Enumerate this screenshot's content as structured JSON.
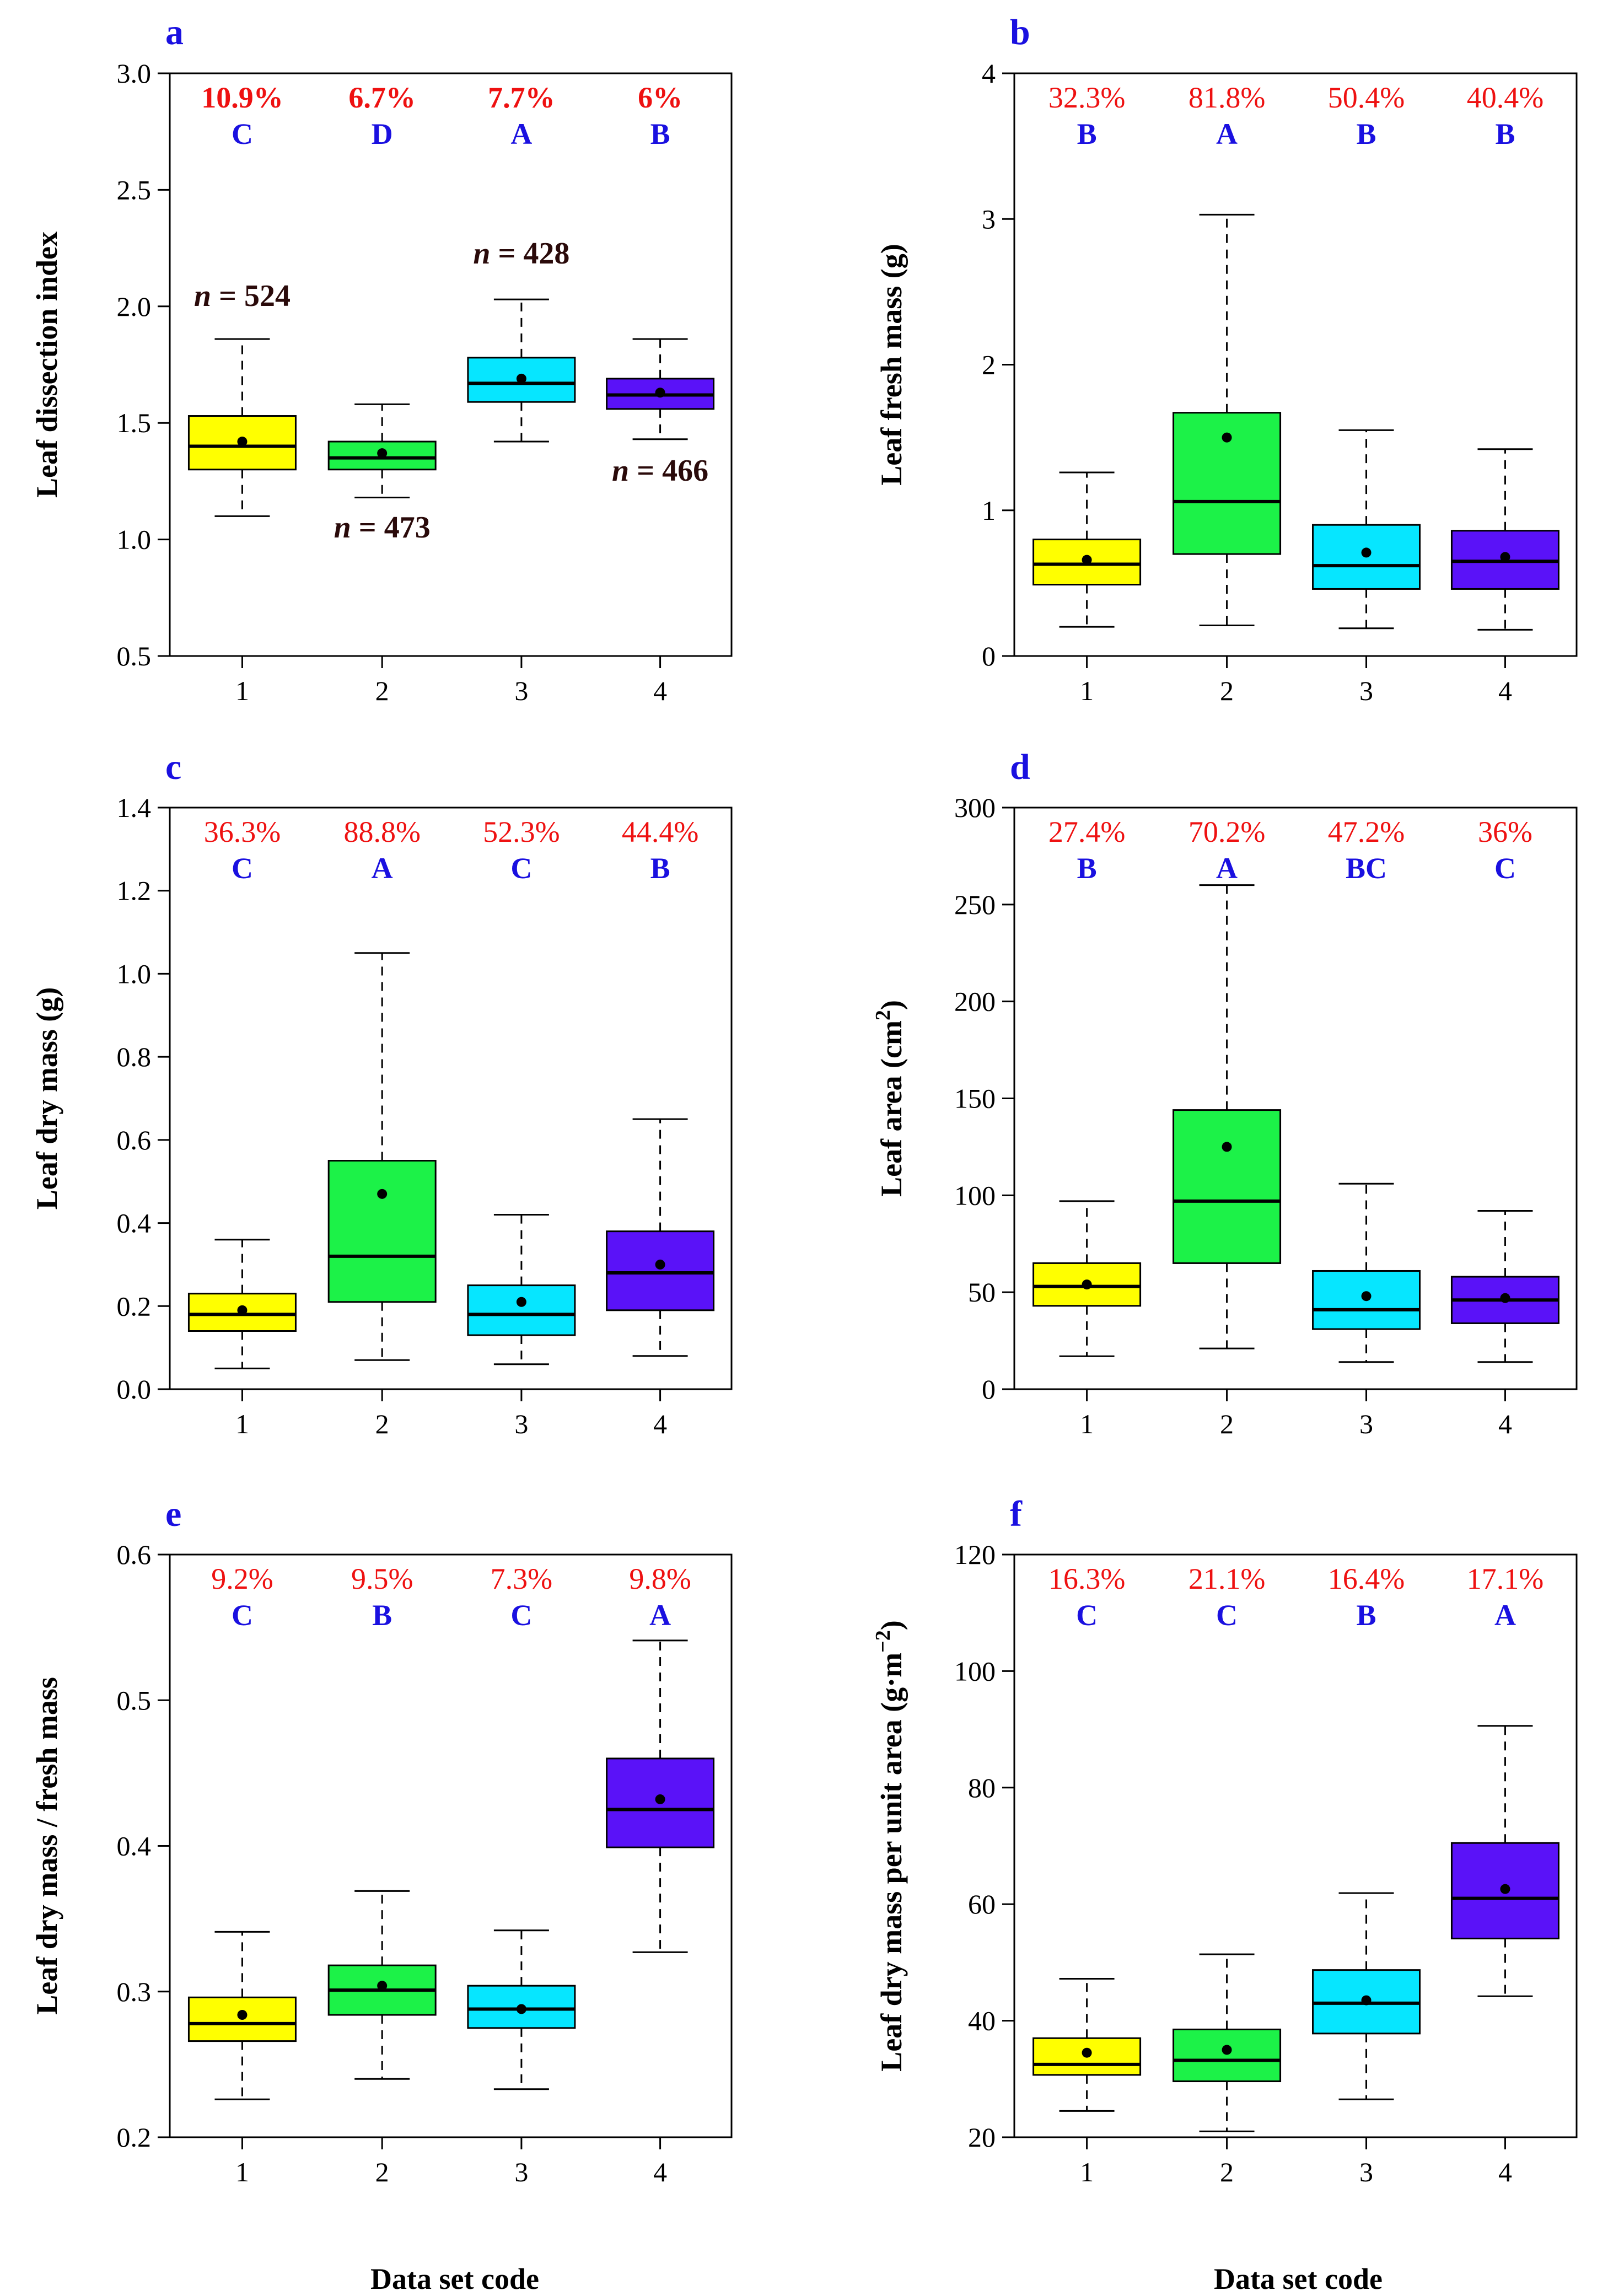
{
  "figure": {
    "xlabel": "Data set code"
  },
  "colors": {
    "box_fills": [
      "#ffff00",
      "#1cf248",
      "#06e6ff",
      "#5a12f8"
    ],
    "percent_text": "#ee1111",
    "group_text": "#1a10e0",
    "panel_letter": "#1a10e0",
    "n_text": "#2a0a0a",
    "axis": "#000000"
  },
  "chart_data": [
    {
      "panel": "a",
      "type": "box",
      "ylabel": "Leaf dissection index",
      "ylim": [
        0.5,
        3.0
      ],
      "yticks": [
        "0.5",
        "1.0",
        "1.5",
        "2.0",
        "2.5",
        "3.0"
      ],
      "categories": [
        "1",
        "2",
        "3",
        "4"
      ],
      "cv_labels": [
        "10.9%",
        "6.7%",
        "7.7%",
        "6%"
      ],
      "cv_bold": true,
      "group_letters": [
        "C",
        "D",
        "A",
        "B"
      ],
      "boxes": [
        {
          "whisker_low": 1.1,
          "q1": 1.3,
          "median": 1.4,
          "q3": 1.53,
          "whisker_high": 1.86,
          "mean": 1.42
        },
        {
          "whisker_low": 1.18,
          "q1": 1.3,
          "median": 1.35,
          "q3": 1.42,
          "whisker_high": 1.58,
          "mean": 1.37
        },
        {
          "whisker_low": 1.42,
          "q1": 1.59,
          "median": 1.67,
          "q3": 1.78,
          "whisker_high": 2.03,
          "mean": 1.69
        },
        {
          "whisker_low": 1.43,
          "q1": 1.56,
          "median": 1.62,
          "q3": 1.69,
          "whisker_high": 1.86,
          "mean": 1.63
        }
      ],
      "n_labels": [
        {
          "prefix": "n",
          "text": " = 524"
        },
        {
          "prefix": "n",
          "text": " = 473"
        },
        {
          "prefix": "n",
          "text": " = 428"
        },
        {
          "prefix": "n",
          "text": " = 466"
        }
      ]
    },
    {
      "panel": "b",
      "type": "box",
      "ylabel": "Leaf fresh mass (g)",
      "ylim": [
        0,
        4
      ],
      "yticks": [
        "0",
        "1",
        "2",
        "3",
        "4"
      ],
      "categories": [
        "1",
        "2",
        "3",
        "4"
      ],
      "cv_labels": [
        "32.3%",
        "81.8%",
        "50.4%",
        "40.4%"
      ],
      "cv_bold": false,
      "group_letters": [
        "B",
        "A",
        "B",
        "B"
      ],
      "boxes": [
        {
          "whisker_low": 0.2,
          "q1": 0.49,
          "median": 0.63,
          "q3": 0.8,
          "whisker_high": 1.26,
          "mean": 0.66
        },
        {
          "whisker_low": 0.21,
          "q1": 0.7,
          "median": 1.06,
          "q3": 1.67,
          "whisker_high": 3.03,
          "mean": 1.5
        },
        {
          "whisker_low": 0.19,
          "q1": 0.46,
          "median": 0.62,
          "q3": 0.9,
          "whisker_high": 1.55,
          "mean": 0.71
        },
        {
          "whisker_low": 0.18,
          "q1": 0.46,
          "median": 0.65,
          "q3": 0.86,
          "whisker_high": 1.42,
          "mean": 0.68
        }
      ]
    },
    {
      "panel": "c",
      "type": "box",
      "ylabel": "Leaf dry mass (g)",
      "ylim": [
        0.0,
        1.4
      ],
      "yticks": [
        "0.0",
        "0.2",
        "0.4",
        "0.6",
        "0.8",
        "1.0",
        "1.2",
        "1.4"
      ],
      "categories": [
        "1",
        "2",
        "3",
        "4"
      ],
      "cv_labels": [
        "36.3%",
        "88.8%",
        "52.3%",
        "44.4%"
      ],
      "cv_bold": false,
      "group_letters": [
        "C",
        "A",
        "C",
        "B"
      ],
      "boxes": [
        {
          "whisker_low": 0.05,
          "q1": 0.14,
          "median": 0.18,
          "q3": 0.23,
          "whisker_high": 0.36,
          "mean": 0.19
        },
        {
          "whisker_low": 0.07,
          "q1": 0.21,
          "median": 0.32,
          "q3": 0.55,
          "whisker_high": 1.05,
          "mean": 0.47
        },
        {
          "whisker_low": 0.06,
          "q1": 0.13,
          "median": 0.18,
          "q3": 0.25,
          "whisker_high": 0.42,
          "mean": 0.21
        },
        {
          "whisker_low": 0.08,
          "q1": 0.19,
          "median": 0.28,
          "q3": 0.38,
          "whisker_high": 0.65,
          "mean": 0.3
        }
      ]
    },
    {
      "panel": "d",
      "type": "box",
      "ylabel": "Leaf area (cm",
      "ylabel_sup": "2",
      "ylabel_end": ")",
      "ylim": [
        0,
        300
      ],
      "yticks": [
        "0",
        "50",
        "100",
        "150",
        "200",
        "250",
        "300"
      ],
      "categories": [
        "1",
        "2",
        "3",
        "4"
      ],
      "cv_labels": [
        "27.4%",
        "70.2%",
        "47.2%",
        "36%"
      ],
      "cv_bold": false,
      "group_letters": [
        "B",
        "A",
        "BC",
        "C"
      ],
      "boxes": [
        {
          "whisker_low": 17,
          "q1": 43,
          "median": 53,
          "q3": 65,
          "whisker_high": 97,
          "mean": 54
        },
        {
          "whisker_low": 21,
          "q1": 65,
          "median": 97,
          "q3": 144,
          "whisker_high": 260,
          "mean": 125
        },
        {
          "whisker_low": 14,
          "q1": 31,
          "median": 41,
          "q3": 61,
          "whisker_high": 106,
          "mean": 48
        },
        {
          "whisker_low": 14,
          "q1": 34,
          "median": 46,
          "q3": 58,
          "whisker_high": 92,
          "mean": 47
        }
      ]
    },
    {
      "panel": "e",
      "type": "box",
      "ylabel": "Leaf dry mass / fresh mass",
      "ylim": [
        0.2,
        0.6
      ],
      "yticks": [
        "0.2",
        "0.3",
        "0.4",
        "0.5",
        "0.6"
      ],
      "categories": [
        "1",
        "2",
        "3",
        "4"
      ],
      "cv_labels": [
        "9.2%",
        "9.5%",
        "7.3%",
        "9.8%"
      ],
      "cv_bold": false,
      "group_letters": [
        "C",
        "B",
        "C",
        "A"
      ],
      "boxes": [
        {
          "whisker_low": 0.226,
          "q1": 0.266,
          "median": 0.278,
          "q3": 0.296,
          "whisker_high": 0.341,
          "mean": 0.284
        },
        {
          "whisker_low": 0.24,
          "q1": 0.284,
          "median": 0.301,
          "q3": 0.318,
          "whisker_high": 0.369,
          "mean": 0.304
        },
        {
          "whisker_low": 0.233,
          "q1": 0.275,
          "median": 0.288,
          "q3": 0.304,
          "whisker_high": 0.342,
          "mean": 0.288
        },
        {
          "whisker_low": 0.327,
          "q1": 0.399,
          "median": 0.425,
          "q3": 0.46,
          "whisker_high": 0.541,
          "mean": 0.432
        }
      ]
    },
    {
      "panel": "f",
      "type": "box",
      "ylabel": "Leaf dry mass per unit area (g·m",
      "ylabel_sup": "−2",
      "ylabel_end": ")",
      "ylim": [
        20,
        120
      ],
      "yticks": [
        "20",
        "40",
        "60",
        "80",
        "100",
        "120"
      ],
      "categories": [
        "1",
        "2",
        "3",
        "4"
      ],
      "cv_labels": [
        "16.3%",
        "21.1%",
        "16.4%",
        "17.1%"
      ],
      "cv_bold": false,
      "group_letters": [
        "C",
        "C",
        "B",
        "A"
      ],
      "boxes": [
        {
          "whisker_low": 24.5,
          "q1": 30.7,
          "median": 32.5,
          "q3": 37.0,
          "whisker_high": 47.2,
          "mean": 34.5
        },
        {
          "whisker_low": 21.0,
          "q1": 29.6,
          "median": 33.2,
          "q3": 38.5,
          "whisker_high": 51.4,
          "mean": 35.0
        },
        {
          "whisker_low": 26.5,
          "q1": 37.8,
          "median": 43.0,
          "q3": 48.7,
          "whisker_high": 61.9,
          "mean": 43.5
        },
        {
          "whisker_low": 44.2,
          "q1": 54.1,
          "median": 61.0,
          "q3": 70.5,
          "whisker_high": 90.6,
          "mean": 62.6
        }
      ]
    }
  ]
}
